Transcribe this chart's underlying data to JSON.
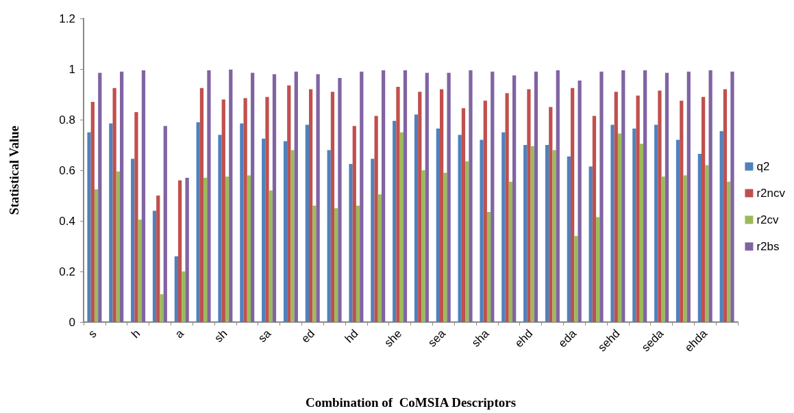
{
  "chart_data": {
    "type": "bar",
    "xlabel": "Combination of  CoMSIA Descriptors",
    "ylabel": "Statistical Value",
    "categories": [
      "s",
      null,
      "h",
      null,
      "a",
      null,
      "sh",
      null,
      "sa",
      null,
      "ed",
      null,
      "hd",
      null,
      "she",
      null,
      "sea",
      null,
      "sha",
      null,
      "ehd",
      null,
      "eda",
      null,
      "sehd",
      null,
      "seda",
      null,
      "ehda",
      null
    ],
    "series": [
      {
        "name": "q2",
        "color": "#4f81bd",
        "values": [
          0.75,
          0.785,
          0.645,
          0.44,
          0.26,
          0.79,
          0.74,
          0.785,
          0.725,
          0.715,
          0.78,
          0.68,
          0.625,
          0.645,
          0.795,
          0.82,
          0.765,
          0.74,
          0.72,
          0.75,
          0.7,
          0.7,
          0.655,
          0.615,
          0.78,
          0.765,
          0.78,
          0.72,
          0.665,
          0.755
        ]
      },
      {
        "name": "r2ncv",
        "color": "#c0504d",
        "values": [
          0.87,
          0.925,
          0.83,
          0.5,
          0.56,
          0.925,
          0.88,
          0.885,
          0.89,
          0.935,
          0.92,
          0.91,
          0.775,
          0.815,
          0.93,
          0.91,
          0.92,
          0.845,
          0.875,
          0.905,
          0.92,
          0.85,
          0.925,
          0.815,
          0.91,
          0.895,
          0.915,
          0.875,
          0.89,
          0.92
        ]
      },
      {
        "name": "r2cv",
        "color": "#9bbb59",
        "values": [
          0.525,
          0.595,
          0.405,
          0.11,
          0.2,
          0.57,
          0.575,
          0.58,
          0.52,
          0.68,
          0.46,
          0.45,
          0.46,
          0.505,
          0.75,
          0.6,
          0.59,
          0.635,
          0.435,
          0.555,
          0.695,
          0.68,
          0.34,
          0.415,
          0.745,
          0.705,
          0.575,
          0.58,
          0.62,
          0.555
        ]
      },
      {
        "name": "r2bs",
        "color": "#8064a2",
        "values": [
          0.985,
          0.99,
          0.995,
          0.775,
          0.57,
          0.995,
          0.998,
          0.985,
          0.98,
          0.99,
          0.98,
          0.965,
          0.99,
          0.995,
          0.995,
          0.985,
          0.985,
          0.995,
          0.99,
          0.975,
          0.99,
          0.995,
          0.955,
          0.99,
          0.995,
          0.995,
          0.985,
          0.99,
          0.995,
          0.99
        ]
      }
    ],
    "ylim": [
      0,
      1.2
    ],
    "yticks": [
      0,
      0.2,
      0.4,
      0.6,
      0.8,
      1,
      1.2
    ],
    "grid": false,
    "legend": "right"
  }
}
